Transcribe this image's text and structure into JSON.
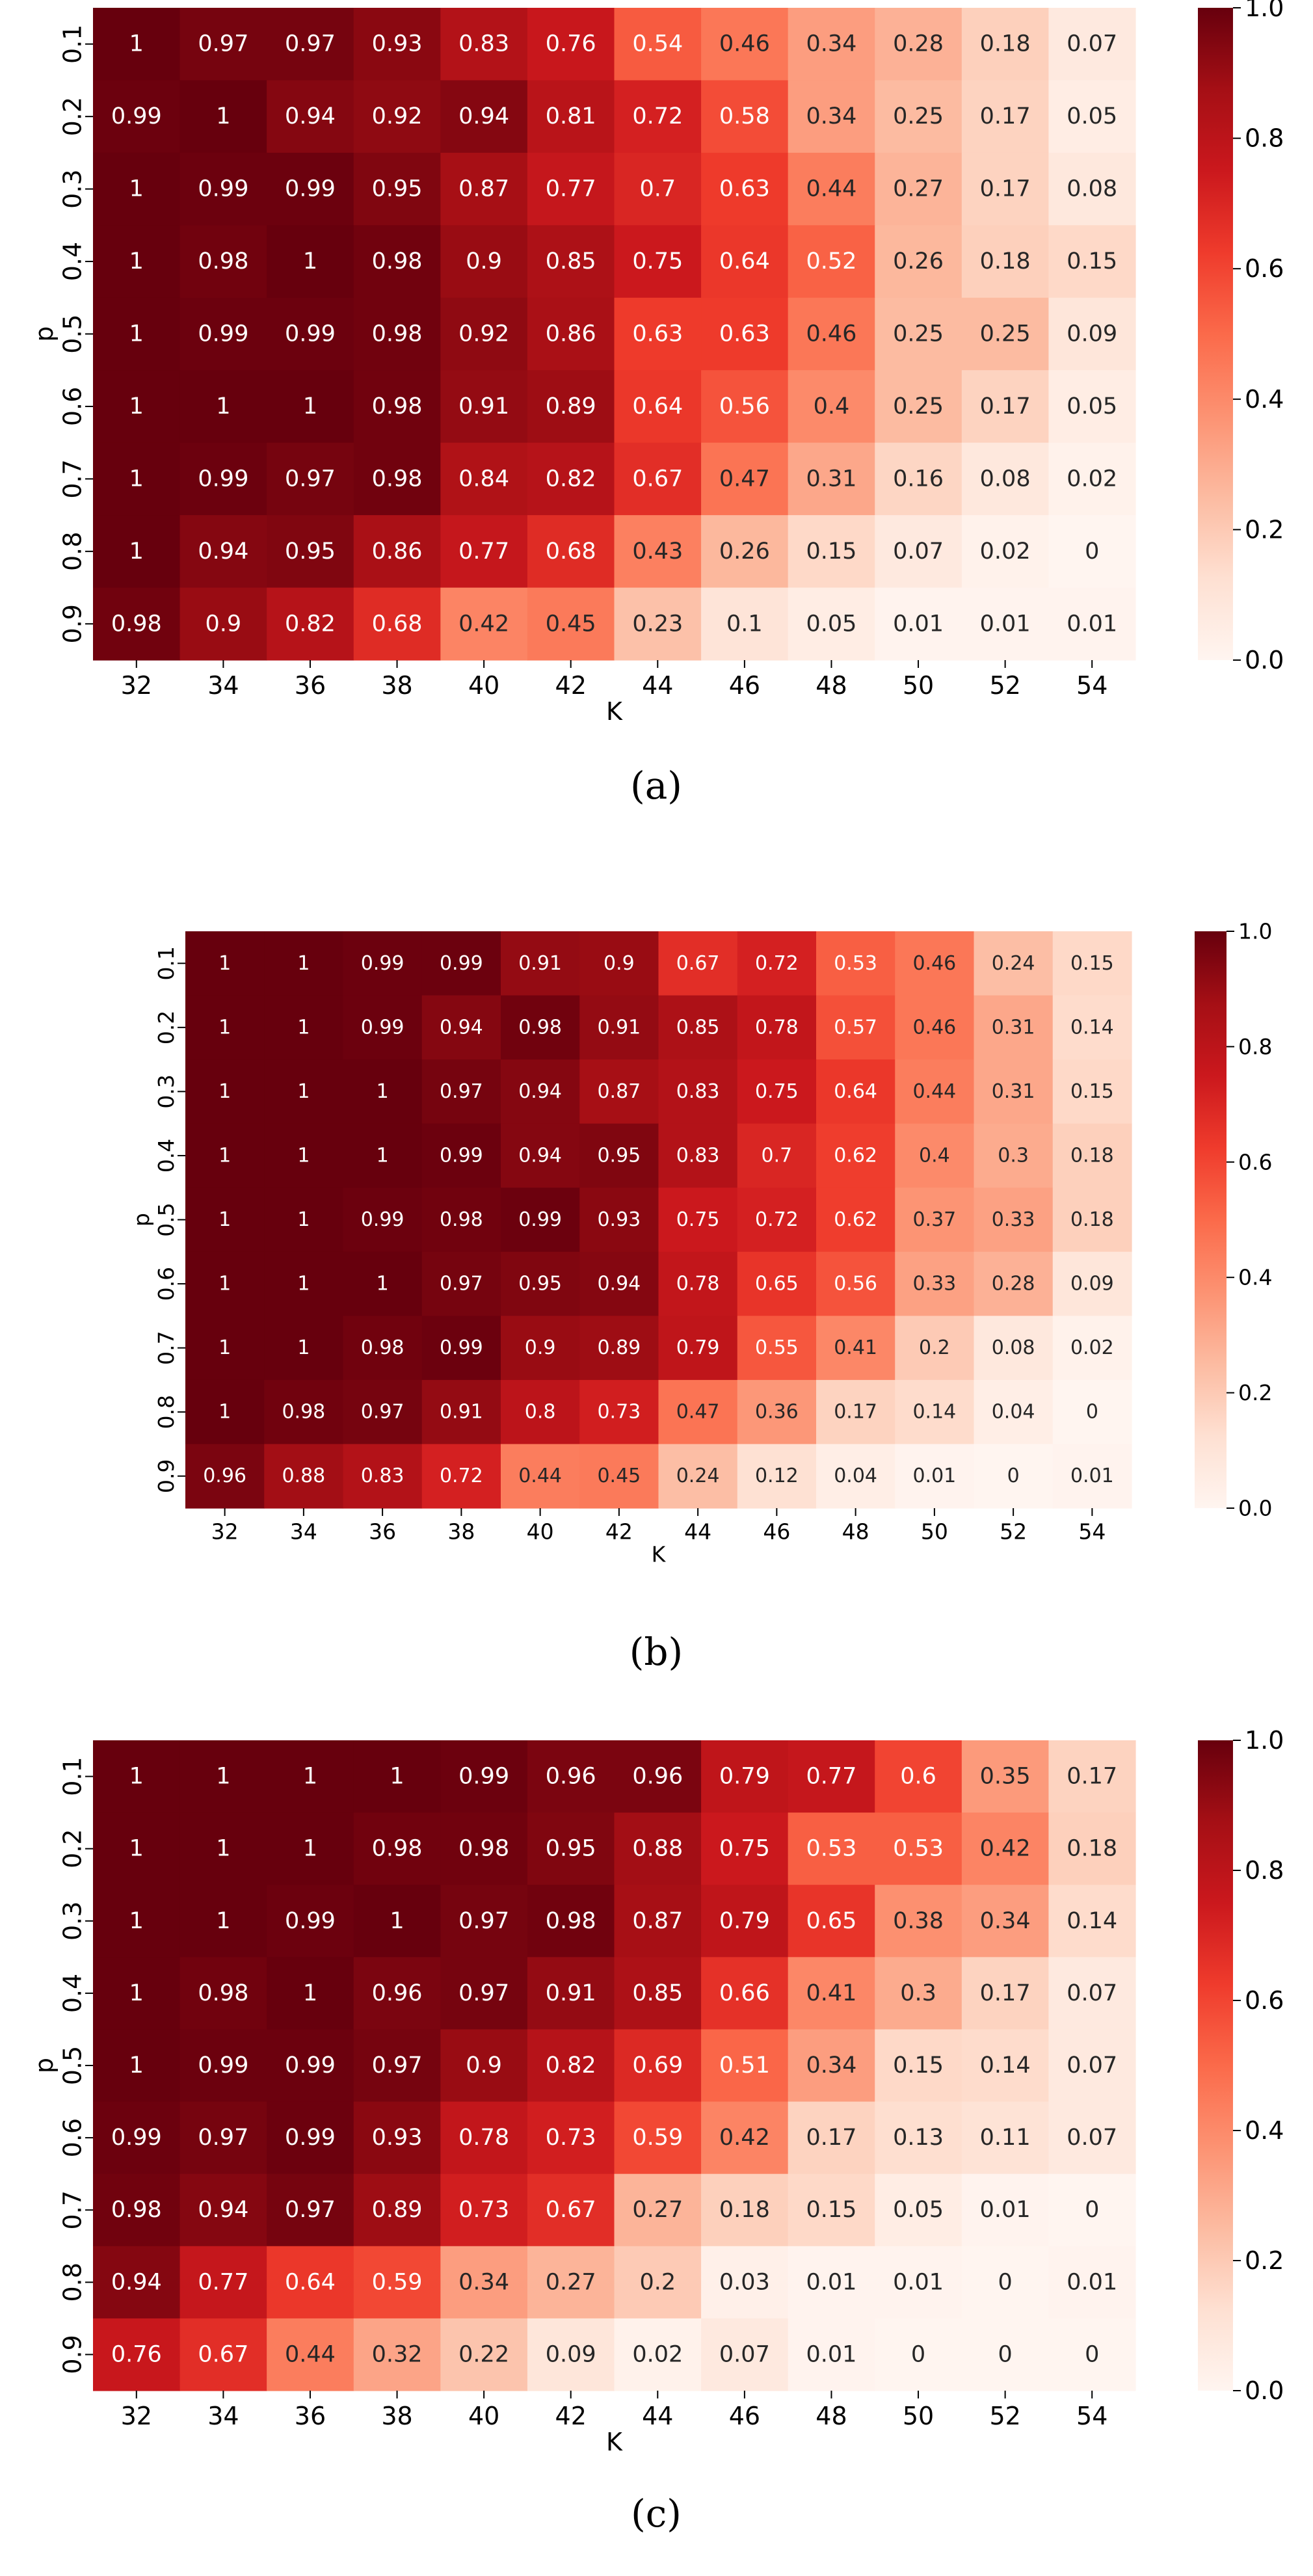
{
  "chart_data": [
    {
      "type": "heatmap",
      "caption": "(a)",
      "xlabel": "K",
      "ylabel": "p",
      "x_ticks": [
        "32",
        "34",
        "36",
        "38",
        "40",
        "42",
        "44",
        "46",
        "48",
        "50",
        "52",
        "54"
      ],
      "y_ticks": [
        "0.1",
        "0.2",
        "0.3",
        "0.4",
        "0.5",
        "0.6",
        "0.7",
        "0.8",
        "0.9"
      ],
      "colorbar": {
        "range": [
          0,
          1
        ],
        "ticks": [
          "0.0",
          "0.2",
          "0.4",
          "0.6",
          "0.8",
          "1.0"
        ],
        "colormap": "Reds"
      },
      "values": [
        [
          "1",
          "0.97",
          "0.97",
          "0.93",
          "0.83",
          "0.76",
          "0.54",
          "0.46",
          "0.34",
          "0.28",
          "0.18",
          "0.07"
        ],
        [
          "0.99",
          "1",
          "0.94",
          "0.92",
          "0.94",
          "0.81",
          "0.72",
          "0.58",
          "0.34",
          "0.25",
          "0.17",
          "0.05"
        ],
        [
          "1",
          "0.99",
          "0.99",
          "0.95",
          "0.87",
          "0.77",
          "0.7",
          "0.63",
          "0.44",
          "0.27",
          "0.17",
          "0.08"
        ],
        [
          "1",
          "0.98",
          "1",
          "0.98",
          "0.9",
          "0.85",
          "0.75",
          "0.64",
          "0.52",
          "0.26",
          "0.18",
          "0.15"
        ],
        [
          "1",
          "0.99",
          "0.99",
          "0.98",
          "0.92",
          "0.86",
          "0.63",
          "0.63",
          "0.46",
          "0.25",
          "0.25",
          "0.09"
        ],
        [
          "1",
          "1",
          "1",
          "0.98",
          "0.91",
          "0.89",
          "0.64",
          "0.56",
          "0.4",
          "0.25",
          "0.17",
          "0.05"
        ],
        [
          "1",
          "0.99",
          "0.97",
          "0.98",
          "0.84",
          "0.82",
          "0.67",
          "0.47",
          "0.31",
          "0.16",
          "0.08",
          "0.02"
        ],
        [
          "1",
          "0.94",
          "0.95",
          "0.86",
          "0.77",
          "0.68",
          "0.43",
          "0.26",
          "0.15",
          "0.07",
          "0.02",
          "0"
        ],
        [
          "0.98",
          "0.9",
          "0.82",
          "0.68",
          "0.42",
          "0.45",
          "0.23",
          "0.1",
          "0.05",
          "0.01",
          "0.01",
          "0.01"
        ]
      ]
    },
    {
      "type": "heatmap",
      "caption": "(b)",
      "xlabel": "K",
      "ylabel": "p",
      "x_ticks": [
        "32",
        "34",
        "36",
        "38",
        "40",
        "42",
        "44",
        "46",
        "48",
        "50",
        "52",
        "54"
      ],
      "y_ticks": [
        "0.1",
        "0.2",
        "0.3",
        "0.4",
        "0.5",
        "0.6",
        "0.7",
        "0.8",
        "0.9"
      ],
      "colorbar": {
        "range": [
          0,
          1
        ],
        "ticks": [
          "0.0",
          "0.2",
          "0.4",
          "0.6",
          "0.8",
          "1.0"
        ],
        "colormap": "Reds"
      },
      "values": [
        [
          "1",
          "1",
          "0.99",
          "0.99",
          "0.91",
          "0.9",
          "0.67",
          "0.72",
          "0.53",
          "0.46",
          "0.24",
          "0.15"
        ],
        [
          "1",
          "1",
          "0.99",
          "0.94",
          "0.98",
          "0.91",
          "0.85",
          "0.78",
          "0.57",
          "0.46",
          "0.31",
          "0.14"
        ],
        [
          "1",
          "1",
          "1",
          "0.97",
          "0.94",
          "0.87",
          "0.83",
          "0.75",
          "0.64",
          "0.44",
          "0.31",
          "0.15"
        ],
        [
          "1",
          "1",
          "1",
          "0.99",
          "0.94",
          "0.95",
          "0.83",
          "0.7",
          "0.62",
          "0.4",
          "0.3",
          "0.18"
        ],
        [
          "1",
          "1",
          "0.99",
          "0.98",
          "0.99",
          "0.93",
          "0.75",
          "0.72",
          "0.62",
          "0.37",
          "0.33",
          "0.18"
        ],
        [
          "1",
          "1",
          "1",
          "0.97",
          "0.95",
          "0.94",
          "0.78",
          "0.65",
          "0.56",
          "0.33",
          "0.28",
          "0.09"
        ],
        [
          "1",
          "1",
          "0.98",
          "0.99",
          "0.9",
          "0.89",
          "0.79",
          "0.55",
          "0.41",
          "0.2",
          "0.08",
          "0.02"
        ],
        [
          "1",
          "0.98",
          "0.97",
          "0.91",
          "0.8",
          "0.73",
          "0.47",
          "0.36",
          "0.17",
          "0.14",
          "0.04",
          "0"
        ],
        [
          "0.96",
          "0.88",
          "0.83",
          "0.72",
          "0.44",
          "0.45",
          "0.24",
          "0.12",
          "0.04",
          "0.01",
          "0",
          "0.01"
        ]
      ]
    },
    {
      "type": "heatmap",
      "caption": "(c)",
      "xlabel": "K",
      "ylabel": "p",
      "x_ticks": [
        "32",
        "34",
        "36",
        "38",
        "40",
        "42",
        "44",
        "46",
        "48",
        "50",
        "52",
        "54"
      ],
      "y_ticks": [
        "0.1",
        "0.2",
        "0.3",
        "0.4",
        "0.5",
        "0.6",
        "0.7",
        "0.8",
        "0.9"
      ],
      "colorbar": {
        "range": [
          0,
          1
        ],
        "ticks": [
          "0.0",
          "0.2",
          "0.4",
          "0.6",
          "0.8",
          "1.0"
        ],
        "colormap": "Reds"
      },
      "values": [
        [
          "1",
          "1",
          "1",
          "1",
          "0.99",
          "0.96",
          "0.96",
          "0.79",
          "0.77",
          "0.6",
          "0.35",
          "0.17"
        ],
        [
          "1",
          "1",
          "1",
          "0.98",
          "0.98",
          "0.95",
          "0.88",
          "0.75",
          "0.53",
          "0.53",
          "0.42",
          "0.18"
        ],
        [
          "1",
          "1",
          "0.99",
          "1",
          "0.97",
          "0.98",
          "0.87",
          "0.79",
          "0.65",
          "0.38",
          "0.34",
          "0.14"
        ],
        [
          "1",
          "0.98",
          "1",
          "0.96",
          "0.97",
          "0.91",
          "0.85",
          "0.66",
          "0.41",
          "0.3",
          "0.17",
          "0.07"
        ],
        [
          "1",
          "0.99",
          "0.99",
          "0.97",
          "0.9",
          "0.82",
          "0.69",
          "0.51",
          "0.34",
          "0.15",
          "0.14",
          "0.07"
        ],
        [
          "0.99",
          "0.97",
          "0.99",
          "0.93",
          "0.78",
          "0.73",
          "0.59",
          "0.42",
          "0.17",
          "0.13",
          "0.11",
          "0.07"
        ],
        [
          "0.98",
          "0.94",
          "0.97",
          "0.89",
          "0.73",
          "0.67",
          "0.27",
          "0.18",
          "0.15",
          "0.05",
          "0.01",
          "0"
        ],
        [
          "0.94",
          "0.77",
          "0.64",
          "0.59",
          "0.34",
          "0.27",
          "0.2",
          "0.03",
          "0.01",
          "0.01",
          "0",
          "0.01"
        ],
        [
          "0.76",
          "0.67",
          "0.44",
          "0.32",
          "0.22",
          "0.09",
          "0.02",
          "0.07",
          "0.01",
          "0",
          "0",
          "0"
        ]
      ]
    }
  ]
}
